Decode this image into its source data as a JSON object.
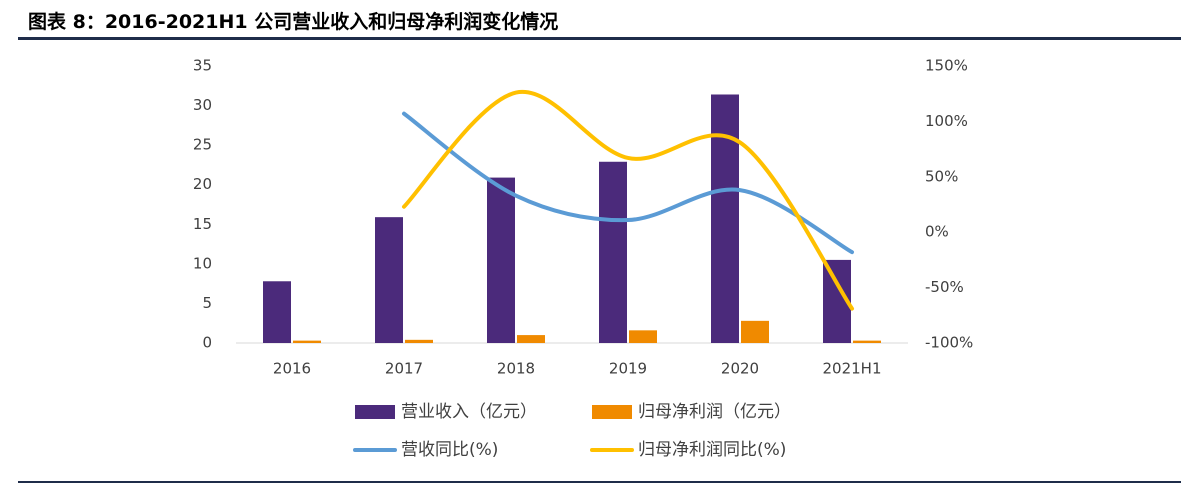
{
  "chart_data": {
    "type": "bar-line",
    "title": "图表 8：2016-2021H1 公司营业收入和归母净利润变化情况",
    "categories": [
      "2016",
      "2017",
      "2018",
      "2019",
      "2020",
      "2021H1"
    ],
    "series": [
      {
        "name": "营业收入（亿元）",
        "type": "bar",
        "color": "#4b2a7b",
        "values": [
          7.8,
          15.9,
          20.9,
          22.9,
          31.4,
          10.5
        ]
      },
      {
        "name": "归母净利润（亿元）",
        "type": "bar",
        "color": "#f08a00",
        "values": [
          0.3,
          0.4,
          1.0,
          1.6,
          2.8,
          0.3
        ]
      },
      {
        "name": "营收同比(%)",
        "type": "line",
        "axis": "y2",
        "color": "#5b9bd5",
        "values": [
          null,
          107,
          33,
          11,
          38,
          -18
        ]
      },
      {
        "name": "归母净利润同比(%)",
        "type": "line",
        "axis": "y2",
        "color": "#ffc000",
        "values": [
          null,
          23,
          126,
          67,
          81,
          -69
        ]
      }
    ],
    "ylim": [
      0,
      35
    ],
    "yticks": [
      0,
      5,
      10,
      15,
      20,
      25,
      30,
      35
    ],
    "y2lim": [
      -100,
      150
    ],
    "y2ticks": [
      {
        "value": -100,
        "label": "-100%"
      },
      {
        "value": -50,
        "label": "-50%"
      },
      {
        "value": 0,
        "label": "0%"
      },
      {
        "value": 50,
        "label": "50%"
      },
      {
        "value": 100,
        "label": "100%"
      },
      {
        "value": 150,
        "label": "150%"
      }
    ],
    "grid": false
  }
}
